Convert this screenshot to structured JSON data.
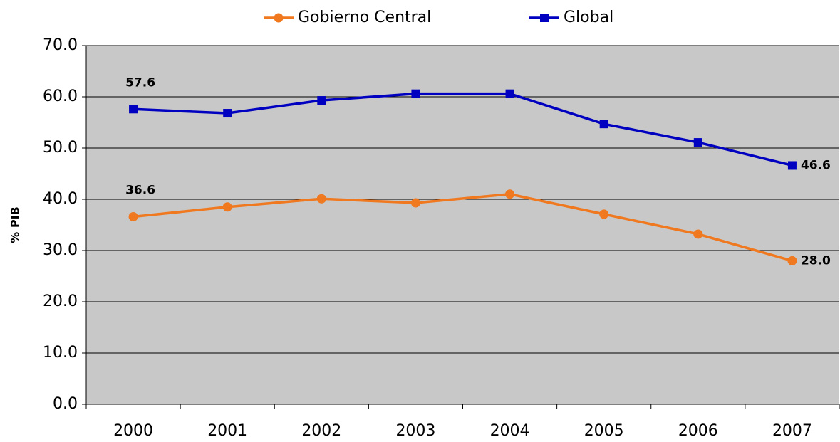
{
  "chart_data": {
    "type": "line",
    "y_label": "% PIB",
    "categories": [
      "2000",
      "2001",
      "2002",
      "2003",
      "2004",
      "2005",
      "2006",
      "2007"
    ],
    "series": [
      {
        "name": "Gobierno Central",
        "color": "#f0781e",
        "marker": "circle",
        "values": [
          36.6,
          38.5,
          40.1,
          39.3,
          41.0,
          37.1,
          33.2,
          28.0
        ],
        "value_labels": [
          "36.6",
          null,
          null,
          null,
          null,
          null,
          null,
          "28.0"
        ]
      },
      {
        "name": "Global",
        "color": "#0000c0",
        "marker": "square",
        "values": [
          57.6,
          56.8,
          59.3,
          60.6,
          60.6,
          54.7,
          51.1,
          46.6
        ],
        "value_labels": [
          "57.6",
          null,
          null,
          null,
          null,
          null,
          null,
          "46.6"
        ]
      }
    ],
    "ylim": [
      0,
      70
    ],
    "yticks": [
      {
        "value": 0,
        "label": "0.0"
      },
      {
        "value": 10,
        "label": "10.0"
      },
      {
        "value": 20,
        "label": "20.0"
      },
      {
        "value": 30,
        "label": "30.0"
      },
      {
        "value": 40,
        "label": "40.0"
      },
      {
        "value": 50,
        "label": "50.0"
      },
      {
        "value": 60,
        "label": "60.0"
      },
      {
        "value": 70,
        "label": "70.0"
      }
    ],
    "grid": true,
    "legend": "top"
  }
}
